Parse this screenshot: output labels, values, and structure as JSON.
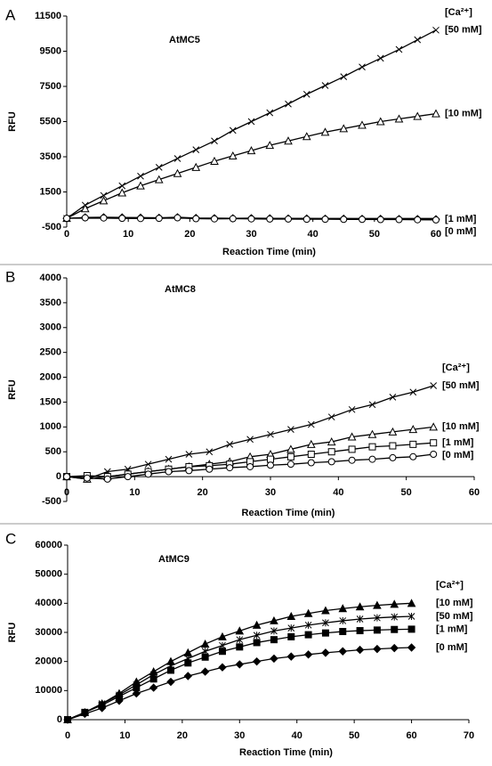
{
  "chart_data": [
    {
      "type": "line",
      "panel_label": "A",
      "title": "AtMC5",
      "xlabel": "Reaction Time (min)",
      "ylabel": "RFU",
      "legend_title": "[Ca²⁺]",
      "xlim": [
        0,
        60
      ],
      "xticks": [
        0,
        10,
        20,
        30,
        40,
        50,
        60
      ],
      "ylim": [
        -500,
        11500
      ],
      "yticks": [
        -500,
        1500,
        3500,
        5500,
        7500,
        9500,
        11500
      ],
      "x": [
        0,
        3,
        6,
        9,
        12,
        15,
        18,
        21,
        24,
        27,
        30,
        33,
        36,
        39,
        42,
        45,
        48,
        51,
        54,
        57,
        60
      ],
      "series": [
        {
          "name": "[50 mM]",
          "color": "#000000",
          "marker": "x",
          "filled": false,
          "values": [
            0,
            750,
            1300,
            1850,
            2400,
            2900,
            3400,
            3900,
            4400,
            5000,
            5500,
            6000,
            6500,
            7050,
            7550,
            8050,
            8600,
            9100,
            9600,
            10150,
            10700
          ]
        },
        {
          "name": "[10 mM]",
          "color": "#000000",
          "marker": "triangle",
          "filled": false,
          "values": [
            0,
            550,
            1000,
            1450,
            1850,
            2200,
            2550,
            2900,
            3250,
            3550,
            3850,
            4150,
            4400,
            4650,
            4900,
            5100,
            5300,
            5500,
            5650,
            5800,
            5950
          ]
        },
        {
          "name": "[1 mM]",
          "color": "#000000",
          "marker": "diamond",
          "filled": false,
          "values": [
            0,
            50,
            60,
            50,
            40,
            30,
            60,
            20,
            10,
            0,
            10,
            0,
            -10,
            -10,
            -20,
            -20,
            -30,
            -30,
            -40,
            -40,
            -50
          ]
        },
        {
          "name": "[0 mM]",
          "color": "#000000",
          "marker": "circle",
          "filled": false,
          "values": [
            0,
            30,
            20,
            0,
            -10,
            0,
            30,
            -20,
            -30,
            -20,
            -30,
            -40,
            -40,
            -50,
            -50,
            -60,
            -60,
            -70,
            -70,
            -80,
            -90
          ]
        }
      ]
    },
    {
      "type": "line",
      "panel_label": "B",
      "title": "AtMC8",
      "xlabel": "Reaction Time (min)",
      "ylabel": "RFU",
      "legend_title": "[Ca²⁺]",
      "xlim": [
        0,
        60
      ],
      "xticks": [
        0,
        10,
        20,
        30,
        40,
        50,
        60
      ],
      "ylim": [
        -500,
        4000
      ],
      "yticks": [
        -500,
        0,
        500,
        1000,
        1500,
        2000,
        2500,
        3000,
        3500,
        4000
      ],
      "x": [
        0,
        3,
        6,
        9,
        12,
        15,
        18,
        21,
        24,
        27,
        30,
        33,
        36,
        39,
        42,
        45,
        48,
        51,
        54
      ],
      "series": [
        {
          "name": "[50 mM]",
          "color": "#000000",
          "marker": "x",
          "filled": false,
          "values": [
            0,
            -50,
            100,
            150,
            250,
            350,
            450,
            500,
            650,
            750,
            850,
            950,
            1050,
            1200,
            1350,
            1450,
            1600,
            1700,
            1830
          ]
        },
        {
          "name": "[10 mM]",
          "color": "#000000",
          "marker": "triangle",
          "filled": false,
          "values": [
            0,
            -50,
            0,
            50,
            100,
            150,
            200,
            250,
            300,
            400,
            450,
            550,
            650,
            700,
            800,
            850,
            900,
            950,
            1000
          ]
        },
        {
          "name": "[1 mM]",
          "color": "#000000",
          "marker": "square",
          "filled": false,
          "values": [
            0,
            20,
            0,
            50,
            100,
            150,
            200,
            220,
            250,
            300,
            350,
            400,
            450,
            500,
            550,
            600,
            620,
            650,
            680
          ]
        },
        {
          "name": "[0 mM]",
          "color": "#000000",
          "marker": "circle",
          "filled": false,
          "values": [
            0,
            -30,
            -50,
            0,
            50,
            100,
            120,
            150,
            180,
            200,
            230,
            250,
            280,
            300,
            330,
            350,
            380,
            400,
            450
          ]
        }
      ]
    },
    {
      "type": "line",
      "panel_label": "C",
      "title": "AtMC9",
      "xlabel": "Reaction Time (min)",
      "ylabel": "RFU",
      "legend_title": "[Ca²⁺]",
      "xlim": [
        0,
        70
      ],
      "xticks": [
        0,
        10,
        20,
        30,
        40,
        50,
        60,
        70
      ],
      "ylim": [
        0,
        60000
      ],
      "yticks": [
        0,
        10000,
        20000,
        30000,
        40000,
        50000,
        60000
      ],
      "x": [
        0,
        3,
        6,
        9,
        12,
        15,
        18,
        21,
        24,
        27,
        30,
        33,
        36,
        39,
        42,
        45,
        48,
        51,
        54,
        57,
        60
      ],
      "series": [
        {
          "name": "[10 mM]",
          "color": "#000000",
          "marker": "triangle",
          "filled": true,
          "values": [
            0,
            2500,
            5500,
            9000,
            13000,
            16500,
            20000,
            23000,
            26000,
            28500,
            30500,
            32500,
            34000,
            35500,
            36500,
            37500,
            38200,
            38800,
            39300,
            39700,
            40000
          ]
        },
        {
          "name": "[50 mM]",
          "color": "#000000",
          "marker": "asterisk",
          "filled": false,
          "values": [
            0,
            2500,
            5500,
            8500,
            12000,
            15500,
            18500,
            21000,
            23500,
            25500,
            27500,
            29000,
            30500,
            31500,
            32500,
            33300,
            34000,
            34600,
            35000,
            35300,
            35500
          ]
        },
        {
          "name": "[1 mM]",
          "color": "#000000",
          "marker": "square",
          "filled": true,
          "values": [
            0,
            2500,
            5000,
            8000,
            11000,
            14000,
            17000,
            19500,
            21500,
            23500,
            25000,
            26500,
            27500,
            28500,
            29200,
            29800,
            30300,
            30600,
            30800,
            31000,
            31100
          ]
        },
        {
          "name": "[0 mM]",
          "color": "#000000",
          "marker": "diamond",
          "filled": true,
          "values": [
            0,
            2000,
            4000,
            6500,
            9000,
            11000,
            13000,
            15000,
            16500,
            18000,
            19000,
            20000,
            21000,
            21700,
            22400,
            23000,
            23500,
            24000,
            24300,
            24600,
            24800
          ]
        }
      ]
    }
  ]
}
